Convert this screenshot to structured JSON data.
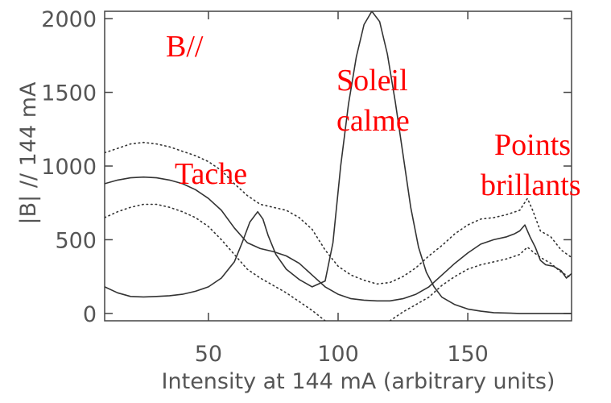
{
  "chart_data": {
    "type": "line",
    "title": "",
    "xlabel": "Intensity at 144 mA (arbitrary units)",
    "ylabel": "|B| // 144 mA",
    "xlim": [
      10,
      190
    ],
    "ylim": [
      -50,
      2050
    ],
    "xticks": [
      50,
      100,
      150
    ],
    "yticks": [
      0,
      500,
      1000,
      1500,
      2000
    ],
    "grid": false,
    "legend": "none",
    "annotations": [
      "B//",
      "Soleil",
      "calme",
      "Tache",
      "Points",
      "brillants"
    ],
    "series": [
      {
        "style": "solid",
        "points": [
          [
            10,
            880
          ],
          [
            15,
            905
          ],
          [
            20,
            920
          ],
          [
            25,
            925
          ],
          [
            30,
            920
          ],
          [
            35,
            905
          ],
          [
            40,
            880
          ],
          [
            45,
            840
          ],
          [
            50,
            780
          ],
          [
            55,
            700
          ],
          [
            60,
            580
          ],
          [
            65,
            480
          ],
          [
            70,
            440
          ],
          [
            75,
            420
          ],
          [
            80,
            390
          ],
          [
            85,
            340
          ],
          [
            90,
            260
          ],
          [
            95,
            180
          ],
          [
            100,
            130
          ],
          [
            105,
            100
          ],
          [
            110,
            90
          ],
          [
            115,
            85
          ],
          [
            120,
            85
          ],
          [
            125,
            100
          ],
          [
            130,
            130
          ],
          [
            135,
            180
          ],
          [
            140,
            260
          ],
          [
            145,
            340
          ],
          [
            150,
            410
          ],
          [
            155,
            470
          ],
          [
            160,
            500
          ],
          [
            165,
            520
          ],
          [
            168,
            540
          ],
          [
            170,
            560
          ],
          [
            172,
            600
          ],
          [
            174,
            520
          ],
          [
            176,
            450
          ],
          [
            178,
            360
          ],
          [
            180,
            330
          ],
          [
            183,
            320
          ],
          [
            186,
            290
          ],
          [
            188,
            240
          ],
          [
            190,
            270
          ]
        ]
      },
      {
        "style": "solid",
        "points": [
          [
            10,
            180
          ],
          [
            15,
            140
          ],
          [
            20,
            115
          ],
          [
            25,
            112
          ],
          [
            30,
            115
          ],
          [
            35,
            120
          ],
          [
            40,
            130
          ],
          [
            45,
            150
          ],
          [
            50,
            180
          ],
          [
            55,
            240
          ],
          [
            60,
            350
          ],
          [
            63,
            480
          ],
          [
            66,
            620
          ],
          [
            69,
            690
          ],
          [
            71,
            640
          ],
          [
            73,
            530
          ],
          [
            76,
            400
          ],
          [
            80,
            300
          ],
          [
            85,
            230
          ],
          [
            90,
            180
          ],
          [
            95,
            220
          ],
          [
            98,
            480
          ],
          [
            101,
            1000
          ],
          [
            104,
            1420
          ],
          [
            107,
            1740
          ],
          [
            110,
            1960
          ],
          [
            113,
            2050
          ],
          [
            116,
            1980
          ],
          [
            119,
            1760
          ],
          [
            122,
            1440
          ],
          [
            125,
            1080
          ],
          [
            128,
            720
          ],
          [
            131,
            450
          ],
          [
            134,
            280
          ],
          [
            137,
            180
          ],
          [
            140,
            110
          ],
          [
            145,
            60
          ],
          [
            150,
            30
          ],
          [
            155,
            15
          ],
          [
            160,
            5
          ],
          [
            170,
            0
          ],
          [
            180,
            0
          ],
          [
            190,
            0
          ]
        ]
      },
      {
        "style": "dotted",
        "points": [
          [
            10,
            1090
          ],
          [
            15,
            1120
          ],
          [
            20,
            1150
          ],
          [
            25,
            1160
          ],
          [
            30,
            1150
          ],
          [
            35,
            1130
          ],
          [
            40,
            1100
          ],
          [
            45,
            1070
          ],
          [
            50,
            1030
          ],
          [
            55,
            970
          ],
          [
            60,
            880
          ],
          [
            65,
            800
          ],
          [
            70,
            740
          ],
          [
            75,
            720
          ],
          [
            80,
            700
          ],
          [
            85,
            650
          ],
          [
            90,
            570
          ],
          [
            95,
            430
          ],
          [
            100,
            320
          ],
          [
            105,
            260
          ],
          [
            110,
            225
          ],
          [
            115,
            200
          ],
          [
            120,
            210
          ],
          [
            125,
            250
          ],
          [
            130,
            310
          ],
          [
            135,
            390
          ],
          [
            140,
            460
          ],
          [
            145,
            540
          ],
          [
            150,
            600
          ],
          [
            155,
            640
          ],
          [
            160,
            650
          ],
          [
            165,
            670
          ],
          [
            170,
            700
          ],
          [
            173,
            780
          ],
          [
            175,
            700
          ],
          [
            178,
            560
          ],
          [
            182,
            520
          ],
          [
            186,
            430
          ],
          [
            190,
            380
          ]
        ]
      },
      {
        "style": "dotted",
        "points": [
          [
            10,
            650
          ],
          [
            15,
            690
          ],
          [
            20,
            720
          ],
          [
            25,
            740
          ],
          [
            30,
            740
          ],
          [
            35,
            720
          ],
          [
            40,
            690
          ],
          [
            45,
            650
          ],
          [
            50,
            590
          ],
          [
            55,
            500
          ],
          [
            60,
            400
          ],
          [
            65,
            300
          ],
          [
            70,
            240
          ],
          [
            75,
            190
          ],
          [
            80,
            140
          ],
          [
            85,
            80
          ],
          [
            90,
            20
          ],
          [
            95,
            -50
          ]
        ]
      },
      {
        "style": "dotted",
        "points": [
          [
            120,
            -50
          ],
          [
            125,
            10
          ],
          [
            130,
            60
          ],
          [
            135,
            110
          ],
          [
            140,
            190
          ],
          [
            145,
            250
          ],
          [
            150,
            300
          ],
          [
            155,
            330
          ],
          [
            160,
            350
          ],
          [
            165,
            370
          ],
          [
            170,
            400
          ],
          [
            173,
            450
          ],
          [
            175,
            420
          ],
          [
            178,
            380
          ],
          [
            182,
            340
          ],
          [
            186,
            280
          ],
          [
            190,
            240
          ]
        ]
      }
    ]
  }
}
